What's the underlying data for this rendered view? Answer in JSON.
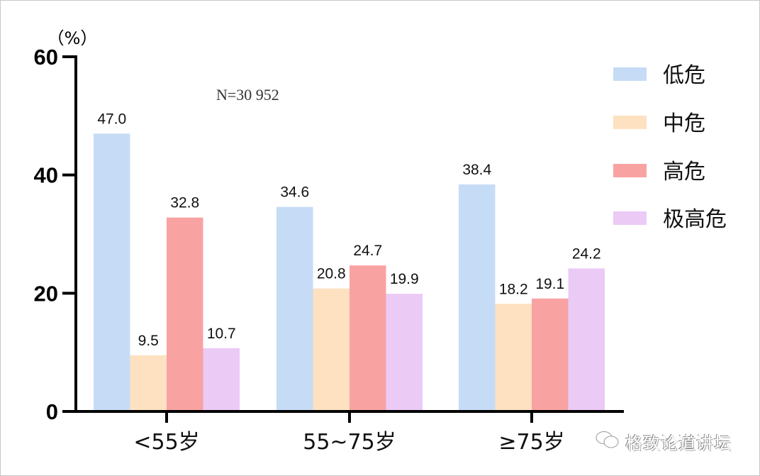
{
  "chart_data": {
    "type": "bar",
    "title": "",
    "ylabel": "（%）",
    "xlabel": "",
    "ylim": [
      0,
      60
    ],
    "yticks": [
      "0",
      "20",
      "40",
      "60"
    ],
    "grid": false,
    "annotation": "N=30 952",
    "legend_position": "right",
    "categories": [
      "<55岁",
      "55~75岁",
      "≥75岁"
    ],
    "series": [
      {
        "name": "低危",
        "color": "#c6dcf6",
        "values": [
          47.0,
          34.6,
          38.4
        ],
        "labels": [
          "47.0",
          "34.6",
          "38.4"
        ]
      },
      {
        "name": "中危",
        "color": "#fde1c1",
        "values": [
          9.5,
          20.8,
          18.2
        ],
        "labels": [
          "9.5",
          "20.8",
          "18.2"
        ]
      },
      {
        "name": "高危",
        "color": "#f9a2a2",
        "values": [
          32.8,
          24.7,
          19.1
        ],
        "labels": [
          "32.8",
          "24.7",
          "19.1"
        ]
      },
      {
        "name": "极高危",
        "color": "#ebcaf6",
        "values": [
          10.7,
          19.9,
          24.2
        ],
        "labels": [
          "10.7",
          "19.9",
          "24.2"
        ]
      }
    ]
  },
  "watermark": "格致论道讲坛"
}
